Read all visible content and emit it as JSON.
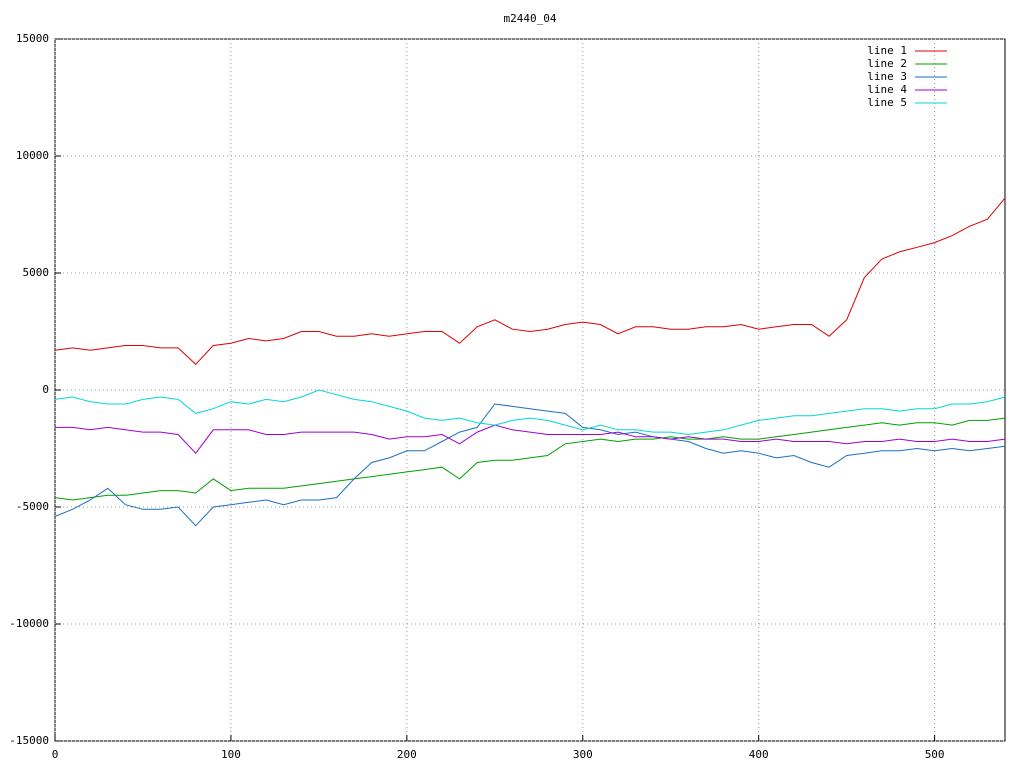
{
  "chart_data": {
    "type": "line",
    "title": "m2440_04",
    "x": [
      0,
      10,
      20,
      30,
      40,
      50,
      60,
      70,
      80,
      90,
      100,
      110,
      120,
      130,
      140,
      150,
      160,
      170,
      180,
      190,
      200,
      210,
      220,
      230,
      240,
      250,
      260,
      270,
      280,
      290,
      300,
      310,
      320,
      330,
      340,
      350,
      360,
      370,
      380,
      390,
      400,
      410,
      420,
      430,
      440,
      450,
      460,
      470,
      480,
      490,
      500,
      510,
      520,
      530,
      540
    ],
    "xlim": [
      0,
      540
    ],
    "xticks": [
      0,
      100,
      200,
      300,
      400,
      500
    ],
    "ylim": [
      -15000,
      15000
    ],
    "yticks": [
      -15000,
      -10000,
      -5000,
      0,
      5000,
      10000,
      15000
    ],
    "grid": true,
    "legend": "top-right",
    "series": [
      {
        "name": "line 1",
        "color": "#e00000",
        "values": [
          1700,
          1800,
          1700,
          1800,
          1900,
          1900,
          1800,
          1800,
          1100,
          1900,
          2000,
          2200,
          2100,
          2200,
          2500,
          2500,
          2300,
          2300,
          2400,
          2300,
          2400,
          2500,
          2500,
          2000,
          2700,
          3000,
          2600,
          2500,
          2600,
          2800,
          2900,
          2800,
          2400,
          2700,
          2700,
          2600,
          2600,
          2700,
          2700,
          2800,
          2600,
          2700,
          2800,
          2800,
          2300,
          3000,
          4800,
          5600,
          5900,
          6100,
          6300,
          6600,
          7000,
          7300,
          8200
        ]
      },
      {
        "name": "line 2",
        "color": "#00a000",
        "values": [
          -4600,
          -4700,
          -4600,
          -4500,
          -4500,
          -4400,
          -4300,
          -4300,
          -4400,
          -3800,
          -4300,
          -4200,
          -4200,
          -4200,
          -4100,
          -4000,
          -3900,
          -3800,
          -3700,
          -3600,
          -3500,
          -3400,
          -3300,
          -3800,
          -3100,
          -3000,
          -3000,
          -2900,
          -2800,
          -2300,
          -2200,
          -2100,
          -2200,
          -2100,
          -2100,
          -2000,
          -2100,
          -2100,
          -2000,
          -2100,
          -2100,
          -2000,
          -1900,
          -1800,
          -1700,
          -1600,
          -1500,
          -1400,
          -1500,
          -1400,
          -1400,
          -1500,
          -1300,
          -1300,
          -1200
        ]
      },
      {
        "name": "line 3",
        "color": "#1a6fc4",
        "values": [
          -5400,
          -5100,
          -4700,
          -4200,
          -4900,
          -5100,
          -5100,
          -5000,
          -5800,
          -5000,
          -4900,
          -4800,
          -4700,
          -4900,
          -4700,
          -4700,
          -4600,
          -3800,
          -3100,
          -2900,
          -2600,
          -2600,
          -2200,
          -1800,
          -1600,
          -600,
          -700,
          -800,
          -900,
          -1000,
          -1600,
          -1700,
          -1900,
          -1800,
          -2000,
          -2100,
          -2200,
          -2500,
          -2700,
          -2600,
          -2700,
          -2900,
          -2800,
          -3100,
          -3300,
          -2800,
          -2700,
          -2600,
          -2600,
          -2500,
          -2600,
          -2500,
          -2600,
          -2500,
          -2400
        ]
      },
      {
        "name": "line 4",
        "color": "#a000d0",
        "values": [
          -1600,
          -1600,
          -1700,
          -1600,
          -1700,
          -1800,
          -1800,
          -1900,
          -2700,
          -1700,
          -1700,
          -1700,
          -1900,
          -1900,
          -1800,
          -1800,
          -1800,
          -1800,
          -1900,
          -2100,
          -2000,
          -2000,
          -1900,
          -2300,
          -1800,
          -1500,
          -1700,
          -1800,
          -1900,
          -1900,
          -1900,
          -1900,
          -1800,
          -2000,
          -2000,
          -2100,
          -2000,
          -2100,
          -2100,
          -2200,
          -2200,
          -2100,
          -2200,
          -2200,
          -2200,
          -2300,
          -2200,
          -2200,
          -2100,
          -2200,
          -2200,
          -2100,
          -2200,
          -2200,
          -2100
        ]
      },
      {
        "name": "line 5",
        "color": "#00d8d8",
        "values": [
          -400,
          -300,
          -500,
          -600,
          -600,
          -400,
          -300,
          -400,
          -1000,
          -800,
          -500,
          -600,
          -400,
          -500,
          -300,
          0,
          -200,
          -400,
          -500,
          -700,
          -900,
          -1200,
          -1300,
          -1200,
          -1400,
          -1500,
          -1300,
          -1200,
          -1300,
          -1500,
          -1700,
          -1500,
          -1700,
          -1700,
          -1800,
          -1800,
          -1900,
          -1800,
          -1700,
          -1500,
          -1300,
          -1200,
          -1100,
          -1100,
          -1000,
          -900,
          -800,
          -800,
          -900,
          -800,
          -800,
          -600,
          -600,
          -500,
          -300
        ]
      }
    ]
  }
}
